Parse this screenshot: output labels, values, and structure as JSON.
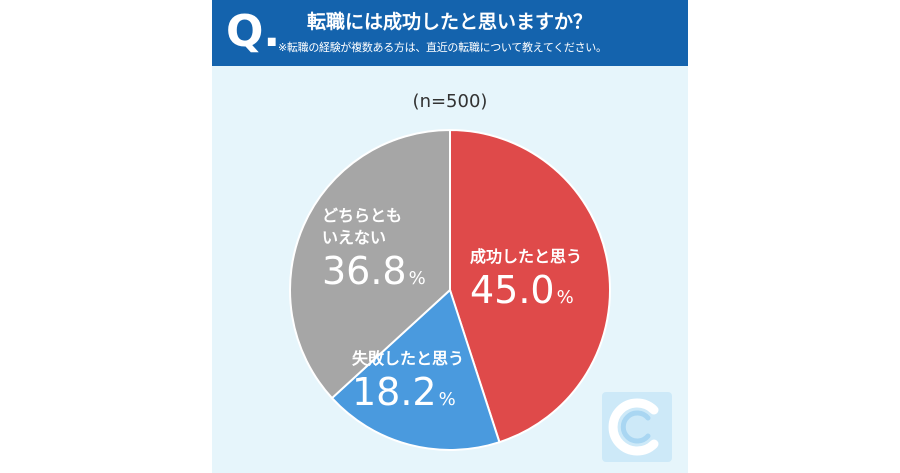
{
  "header": {
    "q_mark": "Q.",
    "title": "転職には成功したと思いますか？",
    "note": "※転職の経験が複数ある方は、直近の転職について教えてください。"
  },
  "sample_label": "(n=500)",
  "colors": {
    "success": "#df4a4a",
    "failure": "#4a9ade",
    "neither": "#a6a6a6",
    "header": "#1463ad",
    "background": "#e6f5fb"
  },
  "chart_data": {
    "type": "pie",
    "title": "転職には成功したと思いますか？",
    "slices": [
      {
        "label": "成功したと思う",
        "value": 45.0,
        "display": "45.0",
        "unit": "%",
        "color": "#df4a4a"
      },
      {
        "label": "失敗したと思う",
        "value": 18.2,
        "display": "18.2",
        "unit": "%",
        "color": "#4a9ade"
      },
      {
        "label": "どちらとも\nいえない",
        "label_line1": "どちらとも",
        "label_line2": "いえない",
        "value": 36.8,
        "display": "36.8",
        "unit": "%",
        "color": "#a6a6a6"
      }
    ]
  },
  "logo": {
    "icon": "c-logo-icon"
  }
}
